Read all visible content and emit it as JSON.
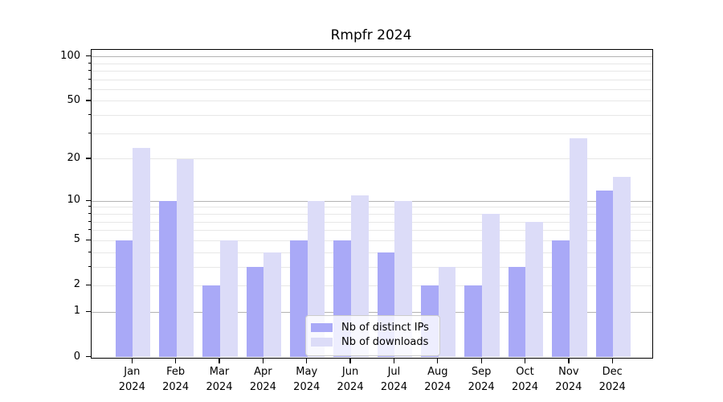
{
  "chart_data": {
    "type": "bar",
    "title": "Rmpfr 2024",
    "categories": [
      "Jan",
      "Feb",
      "Mar",
      "Apr",
      "May",
      "Jun",
      "Jul",
      "Aug",
      "Sep",
      "Oct",
      "Nov",
      "Dec"
    ],
    "year_suffix": "2024",
    "series": [
      {
        "name": "Nb of distinct IPs",
        "color": "#a9a9f7",
        "values": [
          5,
          10,
          2,
          3,
          5,
          5,
          4,
          2,
          2,
          3,
          5,
          12
        ]
      },
      {
        "name": "Nb of downloads",
        "color": "#dcdcf8",
        "values": [
          24,
          20,
          5,
          4,
          10,
          11,
          10,
          3,
          8,
          7,
          28,
          15
        ]
      }
    ],
    "yscale": "log1p",
    "ylim": [
      0,
      112
    ],
    "yticks": [
      0,
      1,
      2,
      5,
      10,
      20,
      50,
      100
    ],
    "minor_gridlines": [
      3,
      4,
      6,
      7,
      8,
      9,
      30,
      40,
      60,
      70,
      80,
      90
    ],
    "emphasized_gridlines": [
      1,
      10,
      100
    ],
    "grid": true,
    "legend_position": "lower center",
    "xlabel": "",
    "ylabel": ""
  },
  "colors": {
    "background": "#ffffff",
    "spine": "#000000",
    "text": "#000000",
    "grid_major": "#b3b3b3",
    "grid_minor": "#e7e7e7",
    "bar_distinct_ips": "#a9a9f7",
    "bar_downloads": "#dcdcf8",
    "legend_border": "#cccccc",
    "legend_background": "rgba(255,255,255,0.8)"
  }
}
